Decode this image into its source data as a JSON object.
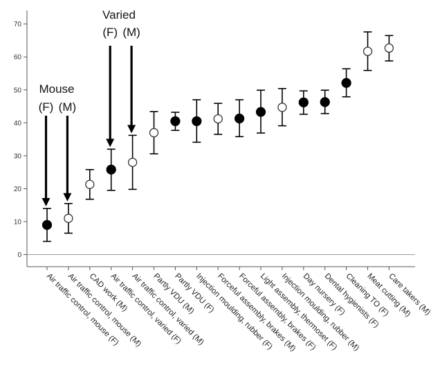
{
  "chart_data": {
    "type": "scatter",
    "title": "",
    "xlabel": "",
    "ylabel": "",
    "ylim": [
      -3,
      72
    ],
    "yticks": [
      0,
      10,
      20,
      30,
      40,
      50,
      60,
      70
    ],
    "grid": false,
    "legend": "none",
    "marker_colors": {
      "filled": "#000000",
      "open": "#ffffff",
      "stroke": "#333333"
    },
    "categories": [
      "Air traffic control, mouse (F)",
      "Air traffic control, mouse (M)",
      "CAD work (M)",
      "Air traffic control, varied (F)",
      "Air traffic control, varied (M)",
      "Partly VDU (M)",
      "Partly VDU (F)",
      "Injection moulding, rubber (F)",
      "Forceful assembly, brakes (M)",
      "Forceful assembly, brakes (F)",
      "Light assembly, thermoset (F)",
      "Injection moulding, rubber (M)",
      "Day nursery (F)",
      "Dental hygienists (F)",
      "Cleaning TO (F)",
      "Meat cutting (M)",
      "Care takers (M)"
    ],
    "points": [
      {
        "value": 9,
        "low": 4,
        "high": 14,
        "filled": true
      },
      {
        "value": 11,
        "low": 6.5,
        "high": 15.5,
        "filled": false
      },
      {
        "value": 21.3,
        "low": 16.8,
        "high": 25.8,
        "filled": false
      },
      {
        "value": 25.8,
        "low": 19.5,
        "high": 32,
        "filled": true
      },
      {
        "value": 28,
        "low": 19.8,
        "high": 36.2,
        "filled": false
      },
      {
        "value": 37,
        "low": 30.6,
        "high": 43.4,
        "filled": false
      },
      {
        "value": 40.5,
        "low": 37.7,
        "high": 43.2,
        "filled": true
      },
      {
        "value": 40.5,
        "low": 34.1,
        "high": 47,
        "filled": true
      },
      {
        "value": 41.2,
        "low": 36.5,
        "high": 45.9,
        "filled": false
      },
      {
        "value": 41.3,
        "low": 35.8,
        "high": 47,
        "filled": true
      },
      {
        "value": 43.3,
        "low": 36.9,
        "high": 49.9,
        "filled": true
      },
      {
        "value": 44.7,
        "low": 39.1,
        "high": 50.4,
        "filled": false
      },
      {
        "value": 46.2,
        "low": 42.6,
        "high": 49.7,
        "filled": true
      },
      {
        "value": 46.3,
        "low": 42.8,
        "high": 49.9,
        "filled": true
      },
      {
        "value": 52.1,
        "low": 47.9,
        "high": 56.4,
        "filled": true
      },
      {
        "value": 61.7,
        "low": 55.9,
        "high": 67.6,
        "filled": false
      },
      {
        "value": 62.7,
        "low": 58.8,
        "high": 66.5,
        "filled": false
      }
    ],
    "annotations": [
      {
        "id": "mouse",
        "title": "Mouse",
        "labels": [
          "(F)",
          "(M)"
        ],
        "targets": [
          0,
          1
        ]
      },
      {
        "id": "varied",
        "title": "Varied",
        "labels": [
          "(F)",
          "(M)"
        ],
        "targets": [
          3,
          4
        ]
      }
    ]
  }
}
